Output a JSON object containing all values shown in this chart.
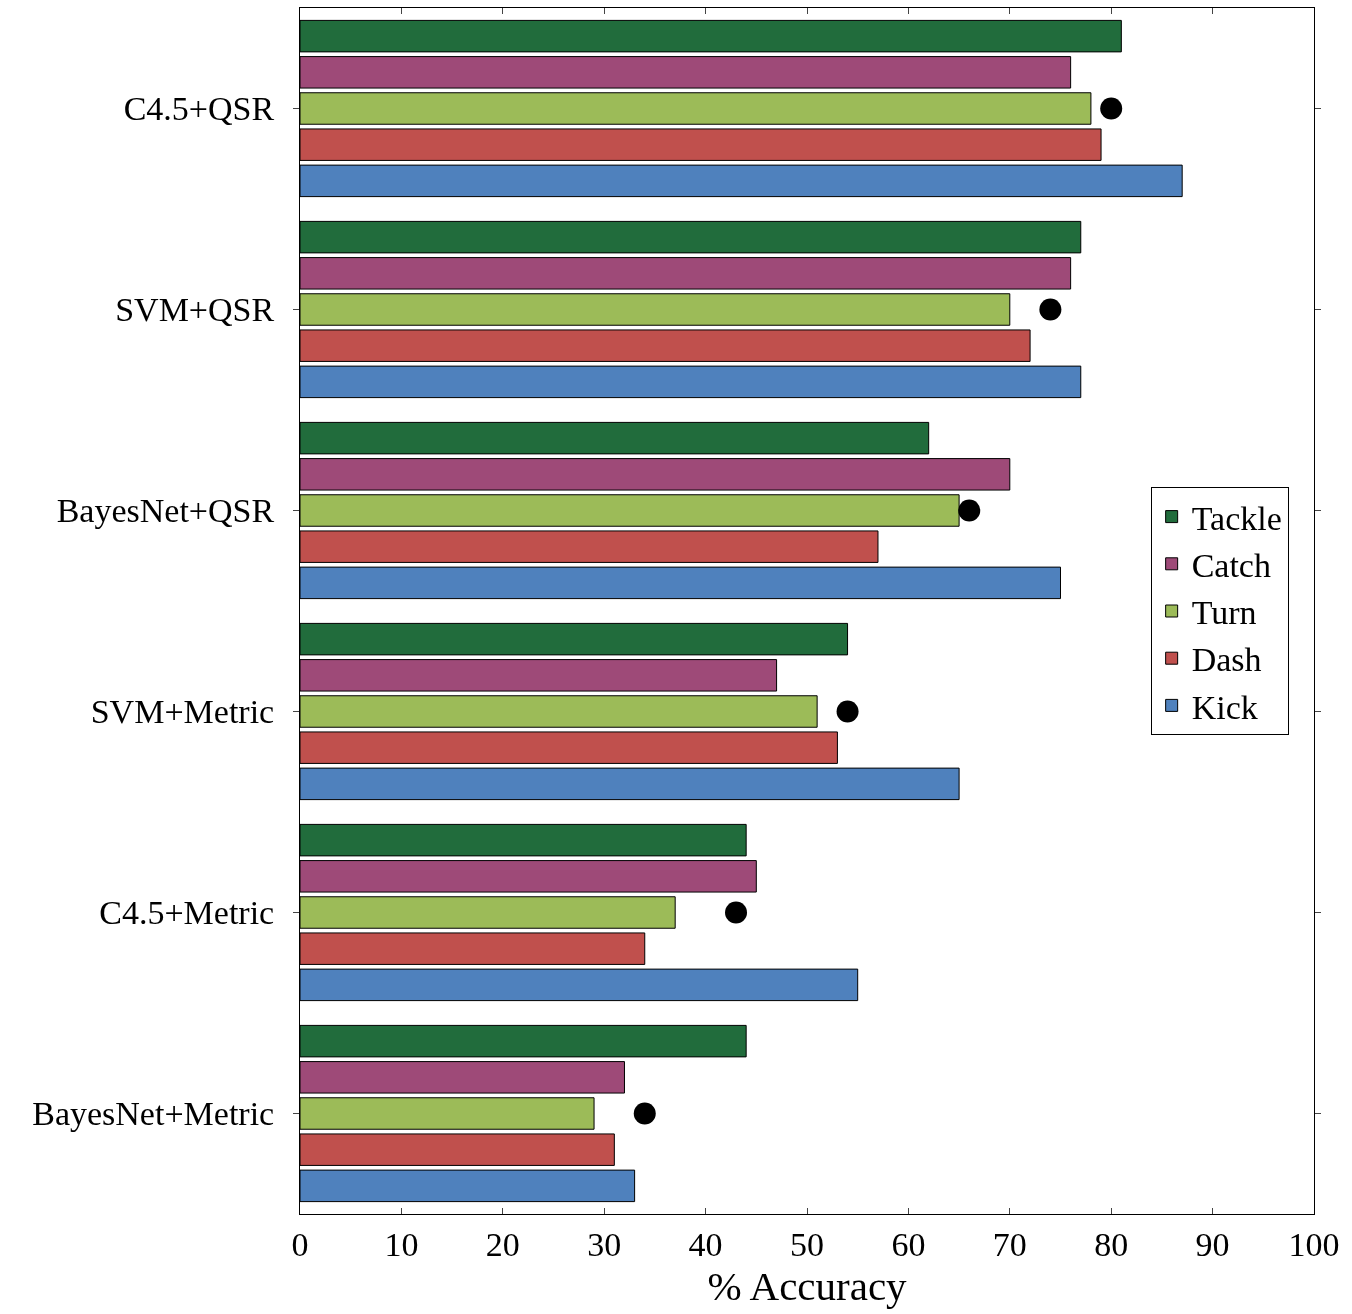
{
  "chart_data": {
    "type": "bar",
    "orientation": "horizontal",
    "xlabel": "% Accuracy",
    "categories": [
      "C4.5+QSR",
      "SVM+QSR",
      "BayesNet+QSR",
      "SVM+Metric",
      "C4.5+Metric",
      "BayesNet+Metric"
    ],
    "series": [
      {
        "name": "Tackle",
        "color": "#216c3c",
        "values": [
          81,
          77,
          62,
          54,
          44,
          44
        ]
      },
      {
        "name": "Catch",
        "color": "#9e4a78",
        "values": [
          76,
          76,
          70,
          47,
          45,
          32
        ]
      },
      {
        "name": "Turn",
        "color": "#9cbb58",
        "values": [
          78,
          70,
          65,
          51,
          37,
          29
        ]
      },
      {
        "name": "Dash",
        "color": "#c0504d",
        "values": [
          79,
          72,
          57,
          53,
          34,
          31
        ]
      },
      {
        "name": "Kick",
        "color": "#4f81bd",
        "values": [
          87,
          77,
          75,
          65,
          55,
          33
        ]
      },
      {
        "type": "scatter",
        "color": "#000000",
        "marker": "circle",
        "x": [
          "C4.5+QSR",
          "SVM+QSR",
          "BayesNet+QSR",
          "SVM+Metric",
          "C4.5+Metric",
          "BayesNet+Metric"
        ],
        "values": [
          80,
          74,
          66,
          54,
          43,
          34
        ]
      }
    ],
    "xlim": [
      0,
      100
    ],
    "xticks": [
      0,
      10,
      20,
      30,
      40,
      50,
      60,
      70,
      80,
      90,
      100
    ],
    "grid": false,
    "legend": "right"
  }
}
